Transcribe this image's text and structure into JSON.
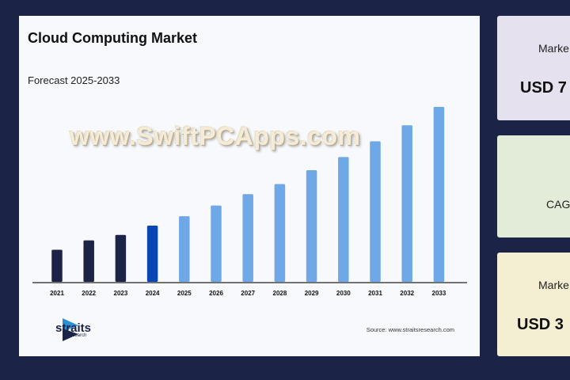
{
  "card": {
    "title": "Cloud Computing Market",
    "subtitle": "Forecast 2025-2033",
    "watermark": "www.SwiftPCApps.com",
    "brand": "straits",
    "brand_sub": "research",
    "source": "Source: www.straitsresearch.com"
  },
  "chart_data": {
    "type": "bar",
    "title": "Cloud Computing Market",
    "subtitle": "Forecast 2025-2033",
    "categories": [
      "2021",
      "2022",
      "2023",
      "2024",
      "2025",
      "2026",
      "2027",
      "2028",
      "2029",
      "2030",
      "2031",
      "2032",
      "2033"
    ],
    "values": [
      18.3,
      23.7,
      26.8,
      32.1,
      37.5,
      43.6,
      50.1,
      55.9,
      63.8,
      71.3,
      80.3,
      89.5,
      100
    ],
    "phase": [
      "historical",
      "historical",
      "historical",
      "base",
      "forecast",
      "forecast",
      "forecast",
      "forecast",
      "forecast",
      "forecast",
      "forecast",
      "forecast",
      "forecast"
    ],
    "colors": {
      "historical": "#1b2447",
      "base": "#0a46b3",
      "forecast": "#6fa8e6"
    },
    "xlabel": "",
    "ylabel": "",
    "ylim": [
      0,
      100
    ],
    "grid": false
  },
  "side_cards": [
    {
      "label": "Marke",
      "value": "USD 7"
    },
    {
      "label": "CAG",
      "value": ""
    },
    {
      "label": "Marke",
      "value": "USD 3"
    }
  ]
}
